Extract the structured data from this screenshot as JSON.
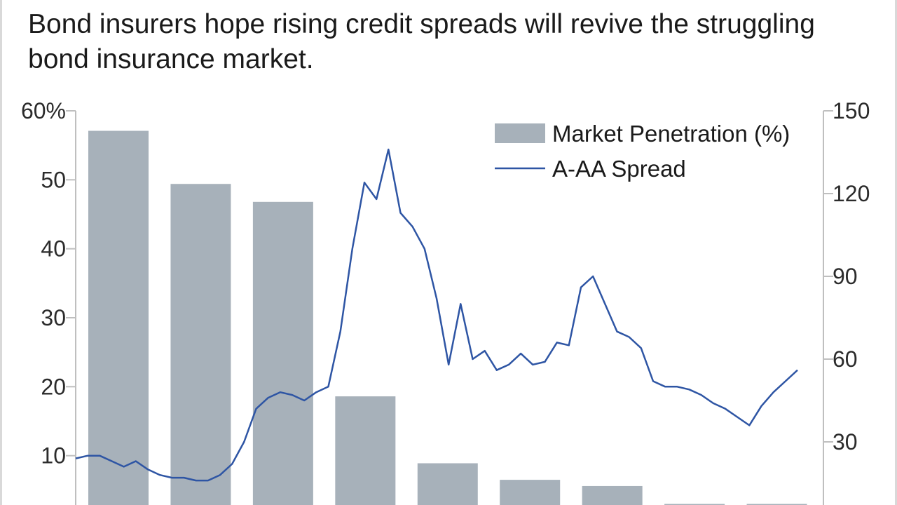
{
  "header": {
    "subtitle": "Bond insurers hope rising credit spreads will revive the struggling bond insurance market."
  },
  "colors": {
    "bar": "#a7b1ba",
    "line": "#2e55a4",
    "axis": "#bfbfbf",
    "text": "#1a1a1a"
  },
  "chart_data": {
    "type": "bar",
    "title": "",
    "legend": {
      "placement": "top-right",
      "entries": [
        "Market Penetration (%)",
        "A-AA Spread"
      ]
    },
    "left_axis": {
      "ylim": [
        0,
        60
      ],
      "ticks": [
        10,
        20,
        30,
        40,
        50,
        60
      ],
      "tick_labels": [
        "10",
        "20",
        "30",
        "40",
        "50",
        "60%"
      ]
    },
    "right_axis": {
      "ylim": [
        0,
        150
      ],
      "ticks": [
        30,
        60,
        90,
        120,
        150
      ],
      "tick_labels": [
        "30",
        "60",
        "90",
        "120",
        "150"
      ]
    },
    "series": [
      {
        "name": "Market Penetration (%)",
        "type": "bar",
        "axis": "left",
        "values": [
          57.1,
          49.4,
          46.8,
          18.6,
          8.9,
          6.5,
          5.6,
          3.0,
          3.0
        ]
      },
      {
        "name": "A-AA Spread",
        "type": "line",
        "axis": "right",
        "values": [
          24,
          25,
          25,
          23,
          21,
          23,
          20,
          18,
          17,
          17,
          16,
          16,
          18,
          22,
          30,
          42,
          46,
          48,
          47,
          45,
          48,
          50,
          70,
          100,
          124,
          118,
          136,
          113,
          108,
          100,
          82,
          58,
          80,
          60,
          63,
          56,
          58,
          62,
          58,
          59,
          66,
          65,
          86,
          90,
          80,
          70,
          68,
          64,
          52,
          50,
          50,
          49,
          47,
          44,
          42,
          39,
          36,
          43,
          48,
          52,
          56
        ]
      }
    ]
  }
}
